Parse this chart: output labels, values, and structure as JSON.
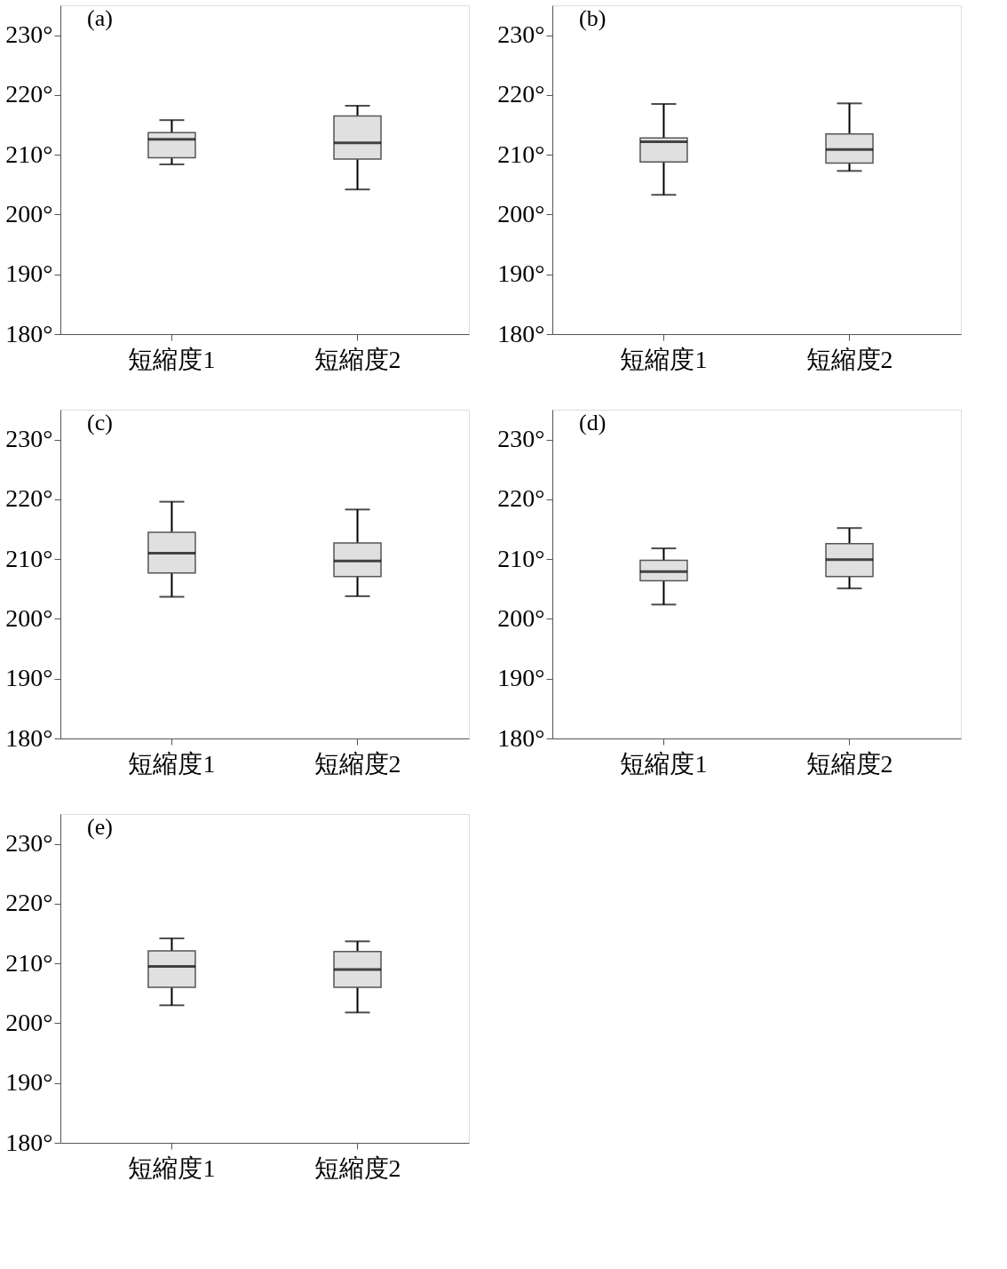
{
  "chart_data": [
    {
      "type": "box",
      "title": "(a)",
      "categories": [
        "短縮度1",
        "短縮度2"
      ],
      "ylim": [
        180,
        235
      ],
      "yticks": [
        {
          "value": 180,
          "label": "180°"
        },
        {
          "value": 190,
          "label": "190°"
        },
        {
          "value": 200,
          "label": "200°"
        },
        {
          "value": 210,
          "label": "210°"
        },
        {
          "value": 220,
          "label": "220°"
        },
        {
          "value": 230,
          "label": "230°"
        }
      ],
      "grid": false,
      "color": "#e0e0e0",
      "boxes": [
        {
          "low": 208.4,
          "q1": 209.5,
          "median": 212.6,
          "q3": 213.7,
          "high": 215.8
        },
        {
          "low": 204.2,
          "q1": 209.3,
          "median": 212.0,
          "q3": 216.5,
          "high": 218.2
        }
      ]
    },
    {
      "type": "box",
      "title": "(b)",
      "categories": [
        "短縮度1",
        "短縮度2"
      ],
      "ylim": [
        180,
        235
      ],
      "yticks": [
        {
          "value": 180,
          "label": "180°"
        },
        {
          "value": 190,
          "label": "190°"
        },
        {
          "value": 200,
          "label": "200°"
        },
        {
          "value": 210,
          "label": "210°"
        },
        {
          "value": 220,
          "label": "220°"
        },
        {
          "value": 230,
          "label": "230°"
        }
      ],
      "grid": false,
      "color": "#e0e0e0",
      "boxes": [
        {
          "low": 203.3,
          "q1": 208.8,
          "median": 212.2,
          "q3": 212.8,
          "high": 218.5
        },
        {
          "low": 207.3,
          "q1": 208.6,
          "median": 210.9,
          "q3": 213.5,
          "high": 218.6
        }
      ]
    },
    {
      "type": "box",
      "title": "(c)",
      "categories": [
        "短縮度1",
        "短縮度2"
      ],
      "ylim": [
        180,
        235
      ],
      "yticks": [
        {
          "value": 180,
          "label": "180°"
        },
        {
          "value": 190,
          "label": "190°"
        },
        {
          "value": 200,
          "label": "200°"
        },
        {
          "value": 210,
          "label": "210°"
        },
        {
          "value": 220,
          "label": "220°"
        },
        {
          "value": 230,
          "label": "230°"
        }
      ],
      "grid": false,
      "color": "#e0e0e0",
      "boxes": [
        {
          "low": 203.7,
          "q1": 207.7,
          "median": 211.0,
          "q3": 214.5,
          "high": 219.6
        },
        {
          "low": 203.8,
          "q1": 207.1,
          "median": 209.7,
          "q3": 212.7,
          "high": 218.3
        }
      ]
    },
    {
      "type": "box",
      "title": "(d)",
      "categories": [
        "短縮度1",
        "短縮度2"
      ],
      "ylim": [
        180,
        235
      ],
      "yticks": [
        {
          "value": 180,
          "label": "180°"
        },
        {
          "value": 190,
          "label": "190°"
        },
        {
          "value": 200,
          "label": "200°"
        },
        {
          "value": 210,
          "label": "210°"
        },
        {
          "value": 220,
          "label": "220°"
        },
        {
          "value": 230,
          "label": "230°"
        }
      ],
      "grid": false,
      "color": "#e0e0e0",
      "boxes": [
        {
          "low": 202.4,
          "q1": 206.4,
          "median": 207.9,
          "q3": 209.8,
          "high": 211.8
        },
        {
          "low": 205.1,
          "q1": 207.1,
          "median": 209.9,
          "q3": 212.6,
          "high": 215.2
        }
      ]
    },
    {
      "type": "box",
      "title": "(e)",
      "categories": [
        "短縮度1",
        "短縮度2"
      ],
      "ylim": [
        180,
        235
      ],
      "yticks": [
        {
          "value": 180,
          "label": "180°"
        },
        {
          "value": 190,
          "label": "190°"
        },
        {
          "value": 200,
          "label": "200°"
        },
        {
          "value": 210,
          "label": "210°"
        },
        {
          "value": 220,
          "label": "220°"
        },
        {
          "value": 230,
          "label": "230°"
        }
      ],
      "grid": false,
      "color": "#e0e0e0",
      "boxes": [
        {
          "low": 203.0,
          "q1": 206.0,
          "median": 209.5,
          "q3": 212.1,
          "high": 214.2
        },
        {
          "low": 201.8,
          "q1": 206.0,
          "median": 209.0,
          "q3": 212.0,
          "high": 213.7
        }
      ]
    }
  ]
}
